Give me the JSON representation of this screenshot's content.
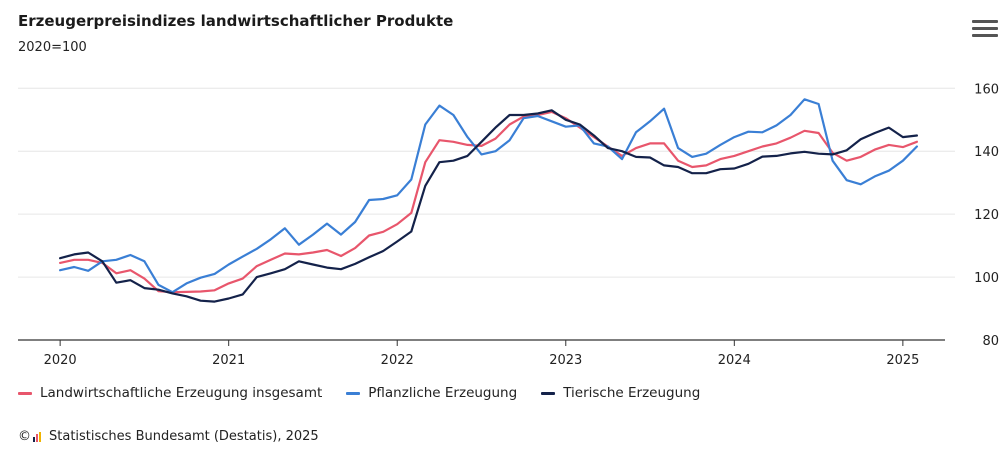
{
  "header": {
    "title": "Erzeugerpreisindizes landwirtschaftlicher Produkte",
    "subtitle": "2020=100",
    "menu_icon": "hamburger-icon"
  },
  "credit": {
    "copyright_symbol": "©",
    "text": "Statistisches Bundesamt (Destatis), 2025",
    "logo_icon": "destatis-logo-icon"
  },
  "colors": {
    "gesamt": "#e8566c",
    "pflanzlich": "#3a7fd5",
    "tierisch": "#14224a",
    "grid": "#e6e6e6",
    "axis": "#333333"
  },
  "chart_data": {
    "type": "line",
    "title": "Erzeugerpreisindizes landwirtschaftlicher Produkte",
    "subtitle": "2020=100",
    "xlabel": "",
    "ylabel": "",
    "x_ticks": [
      "2020",
      "2021",
      "2022",
      "2023",
      "2024",
      "2025"
    ],
    "y_ticks": [
      80,
      100,
      120,
      140,
      160
    ],
    "ylim": [
      80,
      162
    ],
    "xlim": [
      "2019-10",
      "2025-04"
    ],
    "y_axis_side": "right",
    "grid": true,
    "legend_position": "bottom-left",
    "x": [
      "2020-01",
      "2020-02",
      "2020-03",
      "2020-04",
      "2020-05",
      "2020-06",
      "2020-07",
      "2020-08",
      "2020-09",
      "2020-10",
      "2020-11",
      "2020-12",
      "2021-01",
      "2021-02",
      "2021-03",
      "2021-04",
      "2021-05",
      "2021-06",
      "2021-07",
      "2021-08",
      "2021-09",
      "2021-10",
      "2021-11",
      "2021-12",
      "2022-01",
      "2022-02",
      "2022-03",
      "2022-04",
      "2022-05",
      "2022-06",
      "2022-07",
      "2022-08",
      "2022-09",
      "2022-10",
      "2022-11",
      "2022-12",
      "2023-01",
      "2023-02",
      "2023-03",
      "2023-04",
      "2023-05",
      "2023-06",
      "2023-07",
      "2023-08",
      "2023-09",
      "2023-10",
      "2023-11",
      "2023-12",
      "2024-01",
      "2024-02",
      "2024-03",
      "2024-04",
      "2024-05",
      "2024-06",
      "2024-07",
      "2024-08",
      "2024-09",
      "2024-10",
      "2024-11",
      "2024-12",
      "2025-01",
      "2025-02"
    ],
    "series": [
      {
        "name": "Landwirtschaftliche Erzeugung insgesamt",
        "key": "gesamt",
        "values": [
          104.5,
          105.5,
          105.5,
          104.5,
          101.2,
          102.2,
          99.5,
          95.5,
          95.2,
          95.3,
          95.4,
          95.8,
          98.0,
          99.5,
          103.5,
          105.5,
          107.5,
          107.2,
          107.8,
          108.6,
          106.7,
          109.2,
          113.2,
          114.4,
          116.8,
          120.4,
          136.5,
          143.5,
          143.0,
          142.0,
          141.7,
          144.0,
          148.5,
          151.0,
          151.5,
          152.5,
          150.5,
          147.5,
          144.5,
          141.5,
          138.5,
          141.0,
          142.5,
          142.5,
          137.0,
          135.0,
          135.5,
          137.5,
          138.5,
          140.0,
          141.5,
          142.5,
          144.3,
          146.5,
          145.8,
          139.5,
          137.0,
          138.2,
          140.5,
          142.0,
          141.3,
          143.0
        ]
      },
      {
        "name": "Pflanzliche Erzeugung",
        "key": "pflanzlich",
        "values": [
          102.2,
          103.2,
          102.0,
          105.0,
          105.5,
          107.0,
          105.0,
          97.5,
          95.2,
          98.0,
          99.8,
          101.0,
          104.0,
          106.5,
          109.0,
          112.0,
          115.5,
          110.3,
          113.5,
          117.0,
          113.5,
          117.5,
          124.5,
          124.8,
          126.0,
          131.0,
          148.5,
          154.5,
          151.5,
          144.5,
          139.0,
          140.0,
          143.5,
          150.5,
          151.2,
          149.5,
          147.8,
          148.2,
          142.5,
          141.5,
          137.5,
          146.0,
          149.5,
          153.5,
          141.0,
          138.2,
          139.2,
          142.0,
          144.5,
          146.2,
          146.0,
          148.2,
          151.5,
          156.5,
          155.0,
          137.0,
          130.8,
          129.5,
          132.0,
          133.8,
          137.0,
          141.5
        ]
      },
      {
        "name": "Tierische Erzeugung",
        "key": "tierisch",
        "values": [
          106.0,
          107.2,
          107.8,
          105.0,
          98.2,
          99.0,
          96.5,
          96.0,
          94.8,
          93.9,
          92.5,
          92.2,
          93.2,
          94.5,
          100.0,
          101.2,
          102.5,
          105.0,
          104.0,
          103.0,
          102.5,
          104.2,
          106.3,
          108.3,
          111.3,
          114.5,
          129.0,
          136.5,
          137.0,
          138.5,
          143.0,
          147.5,
          151.5,
          151.5,
          152.0,
          153.0,
          150.0,
          148.5,
          145.0,
          141.0,
          140.0,
          138.2,
          138.0,
          135.5,
          135.0,
          133.0,
          133.0,
          134.3,
          134.5,
          136.0,
          138.3,
          138.5,
          139.3,
          139.8,
          139.2,
          139.0,
          140.3,
          143.8,
          145.8,
          147.5,
          144.5,
          145.0
        ]
      }
    ]
  }
}
